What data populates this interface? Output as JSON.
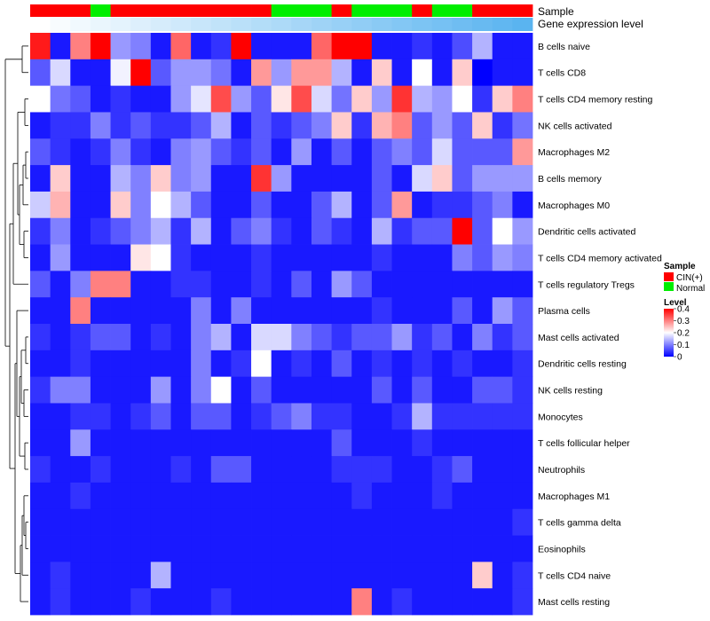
{
  "chart_data": {
    "type": "heatmap",
    "title": "",
    "rows": [
      "B cells naive",
      "T cells CD8",
      "T cells CD4 memory resting",
      "NK cells activated",
      "Macrophages M2",
      "B cells memory",
      "Macrophages M0",
      "Dendritic cells activated",
      "T cells CD4 memory activated",
      "T cells regulatory  Tregs",
      "Plasma cells",
      "Mast cells activated",
      "Dendritic cells resting",
      "NK cells resting",
      "Monocytes",
      "T cells follicular helper",
      "Neutrophils",
      "Macrophages M1",
      "T cells gamma delta",
      "Eosinophils",
      "T cells CD4 naive",
      "Mast cells resting"
    ],
    "sample_groups": [
      "CIN",
      "CIN",
      "CIN",
      "N",
      "CIN",
      "CIN",
      "CIN",
      "CIN",
      "CIN",
      "CIN",
      "CIN",
      "CIN",
      "N",
      "N",
      "N",
      "CIN",
      "N",
      "N",
      "N",
      "CIN",
      "N",
      "N",
      "CIN",
      "CIN",
      "CIN"
    ],
    "gene_expression_gradient": [
      "#ffffff",
      "#5ab4f0"
    ],
    "matrix": [
      [
        0.38,
        0.02,
        0.3,
        0.4,
        0.12,
        0.1,
        0.02,
        0.32,
        0.02,
        0.04,
        0.4,
        0.02,
        0.02,
        0.02,
        0.32,
        0.4,
        0.4,
        0.02,
        0.02,
        0.04,
        0.02,
        0.06,
        0.14,
        0.02,
        0.02
      ],
      [
        0.07,
        0.17,
        0.02,
        0.02,
        0.19,
        0.4,
        0.07,
        0.12,
        0.12,
        0.09,
        0.02,
        0.28,
        0.12,
        0.28,
        0.28,
        0.14,
        0.02,
        0.24,
        0.02,
        0.2,
        0.02,
        0.24,
        0.0,
        0.02,
        0.02
      ],
      [
        0.2,
        0.09,
        0.07,
        0.02,
        0.04,
        0.02,
        0.02,
        0.12,
        0.18,
        0.34,
        0.12,
        0.07,
        0.22,
        0.34,
        0.17,
        0.09,
        0.24,
        0.12,
        0.36,
        0.14,
        0.12,
        0.2,
        0.04,
        0.24,
        0.3
      ],
      [
        0.02,
        0.04,
        0.04,
        0.1,
        0.04,
        0.07,
        0.04,
        0.04,
        0.07,
        0.14,
        0.02,
        0.07,
        0.04,
        0.07,
        0.1,
        0.24,
        0.04,
        0.26,
        0.3,
        0.07,
        0.12,
        0.07,
        0.24,
        0.04,
        0.09
      ],
      [
        0.07,
        0.04,
        0.02,
        0.04,
        0.1,
        0.04,
        0.02,
        0.1,
        0.12,
        0.07,
        0.04,
        0.07,
        0.02,
        0.12,
        0.02,
        0.07,
        0.02,
        0.07,
        0.1,
        0.07,
        0.17,
        0.07,
        0.07,
        0.07,
        0.28
      ],
      [
        0.02,
        0.24,
        0.02,
        0.02,
        0.14,
        0.1,
        0.24,
        0.1,
        0.12,
        0.02,
        0.02,
        0.36,
        0.12,
        0.02,
        0.02,
        0.02,
        0.02,
        0.07,
        0.02,
        0.17,
        0.24,
        0.07,
        0.12,
        0.12,
        0.12
      ],
      [
        0.16,
        0.26,
        0.02,
        0.02,
        0.24,
        0.1,
        0.2,
        0.14,
        0.07,
        0.02,
        0.02,
        0.07,
        0.02,
        0.02,
        0.07,
        0.14,
        0.02,
        0.07,
        0.28,
        0.02,
        0.04,
        0.04,
        0.07,
        0.1,
        0.02
      ],
      [
        0.04,
        0.1,
        0.02,
        0.04,
        0.07,
        0.1,
        0.14,
        0.04,
        0.14,
        0.02,
        0.07,
        0.1,
        0.04,
        0.02,
        0.07,
        0.04,
        0.02,
        0.14,
        0.04,
        0.07,
        0.07,
        0.4,
        0.07,
        0.2,
        0.12
      ],
      [
        0.02,
        0.12,
        0.02,
        0.02,
        0.02,
        0.22,
        0.2,
        0.04,
        0.02,
        0.02,
        0.02,
        0.04,
        0.02,
        0.02,
        0.02,
        0.02,
        0.02,
        0.04,
        0.02,
        0.02,
        0.02,
        0.1,
        0.07,
        0.12,
        0.1
      ],
      [
        0.07,
        0.02,
        0.1,
        0.3,
        0.3,
        0.02,
        0.02,
        0.04,
        0.04,
        0.02,
        0.02,
        0.04,
        0.02,
        0.07,
        0.02,
        0.12,
        0.07,
        0.02,
        0.02,
        0.02,
        0.02,
        0.02,
        0.02,
        0.02,
        0.02
      ],
      [
        0.02,
        0.02,
        0.3,
        0.02,
        0.02,
        0.02,
        0.02,
        0.02,
        0.1,
        0.02,
        0.1,
        0.02,
        0.02,
        0.02,
        0.02,
        0.02,
        0.02,
        0.04,
        0.02,
        0.02,
        0.02,
        0.07,
        0.02,
        0.12,
        0.07
      ],
      [
        0.04,
        0.02,
        0.04,
        0.07,
        0.07,
        0.02,
        0.04,
        0.02,
        0.1,
        0.14,
        0.02,
        0.17,
        0.17,
        0.1,
        0.07,
        0.04,
        0.07,
        0.07,
        0.12,
        0.04,
        0.07,
        0.02,
        0.1,
        0.04,
        0.07
      ],
      [
        0.02,
        0.02,
        0.04,
        0.02,
        0.02,
        0.02,
        0.02,
        0.02,
        0.1,
        0.02,
        0.04,
        0.2,
        0.02,
        0.04,
        0.02,
        0.07,
        0.02,
        0.04,
        0.02,
        0.04,
        0.02,
        0.04,
        0.02,
        0.02,
        0.04
      ],
      [
        0.04,
        0.1,
        0.1,
        0.02,
        0.02,
        0.02,
        0.12,
        0.02,
        0.1,
        0.2,
        0.02,
        0.07,
        0.02,
        0.02,
        0.02,
        0.02,
        0.02,
        0.07,
        0.02,
        0.07,
        0.02,
        0.02,
        0.07,
        0.07,
        0.04
      ],
      [
        0.02,
        0.02,
        0.04,
        0.04,
        0.02,
        0.04,
        0.07,
        0.02,
        0.07,
        0.07,
        0.02,
        0.04,
        0.07,
        0.1,
        0.04,
        0.04,
        0.02,
        0.02,
        0.04,
        0.14,
        0.04,
        0.04,
        0.04,
        0.04,
        0.04
      ],
      [
        0.02,
        0.02,
        0.12,
        0.02,
        0.02,
        0.02,
        0.02,
        0.02,
        0.02,
        0.02,
        0.02,
        0.02,
        0.02,
        0.02,
        0.02,
        0.07,
        0.02,
        0.02,
        0.02,
        0.04,
        0.02,
        0.02,
        0.02,
        0.02,
        0.02
      ],
      [
        0.04,
        0.02,
        0.02,
        0.04,
        0.02,
        0.02,
        0.02,
        0.04,
        0.02,
        0.07,
        0.07,
        0.02,
        0.02,
        0.02,
        0.02,
        0.04,
        0.04,
        0.04,
        0.02,
        0.02,
        0.04,
        0.07,
        0.02,
        0.02,
        0.02
      ],
      [
        0.02,
        0.02,
        0.04,
        0.02,
        0.02,
        0.02,
        0.02,
        0.02,
        0.02,
        0.02,
        0.02,
        0.02,
        0.02,
        0.02,
        0.02,
        0.02,
        0.04,
        0.02,
        0.02,
        0.02,
        0.04,
        0.02,
        0.02,
        0.02,
        0.02
      ],
      [
        0.02,
        0.02,
        0.02,
        0.02,
        0.02,
        0.02,
        0.02,
        0.02,
        0.02,
        0.02,
        0.02,
        0.02,
        0.02,
        0.02,
        0.02,
        0.02,
        0.02,
        0.02,
        0.02,
        0.02,
        0.02,
        0.02,
        0.02,
        0.02,
        0.04
      ],
      [
        0.02,
        0.02,
        0.02,
        0.02,
        0.02,
        0.02,
        0.02,
        0.02,
        0.02,
        0.02,
        0.02,
        0.02,
        0.02,
        0.02,
        0.02,
        0.02,
        0.02,
        0.02,
        0.02,
        0.02,
        0.02,
        0.02,
        0.02,
        0.02,
        0.02
      ],
      [
        0.02,
        0.04,
        0.02,
        0.02,
        0.02,
        0.02,
        0.14,
        0.02,
        0.02,
        0.02,
        0.02,
        0.02,
        0.02,
        0.02,
        0.02,
        0.02,
        0.02,
        0.02,
        0.02,
        0.02,
        0.02,
        0.02,
        0.24,
        0.02,
        0.04
      ],
      [
        0.02,
        0.04,
        0.02,
        0.02,
        0.02,
        0.04,
        0.02,
        0.02,
        0.02,
        0.04,
        0.02,
        0.02,
        0.02,
        0.02,
        0.02,
        0.02,
        0.3,
        0.02,
        0.04,
        0.02,
        0.02,
        0.02,
        0.02,
        0.02,
        0.04
      ]
    ],
    "annotations": {
      "sample_label": "Sample",
      "gene_label": "Gene expression level"
    },
    "legend": {
      "sample": {
        "title": "Sample",
        "entries": [
          {
            "label": "CIN(+)",
            "color": "#ff0000"
          },
          {
            "label": "Normal",
            "color": "#00ee00"
          }
        ]
      },
      "level": {
        "title": "Level",
        "ticks": [
          "0.4",
          "0.3",
          "0.2",
          "0.1",
          "0"
        ],
        "range": [
          0,
          0.4
        ]
      }
    },
    "colors": {
      "low": "#0000ff",
      "mid": "#ffffff",
      "high": "#ff0000",
      "mid_value": 0.2
    }
  }
}
